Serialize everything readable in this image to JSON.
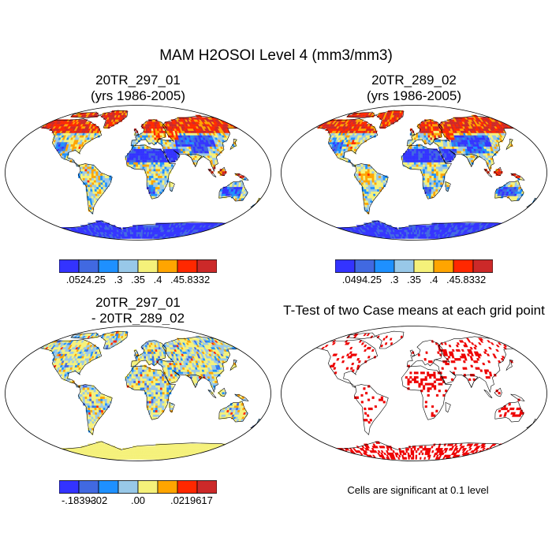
{
  "figure": {
    "title": "MAM H2OSOI Level 4 (mm3/mm3)"
  },
  "panels": [
    {
      "id": "p1",
      "title_line1": "20TR_297_01",
      "title_line2": "(yrs 1986-2005)",
      "type": "field"
    },
    {
      "id": "p2",
      "title_line1": "20TR_289_02",
      "title_line2": "(yrs 1986-2005)",
      "type": "field"
    },
    {
      "id": "p3",
      "title_line1": "20TR_297_01",
      "title_line2": "- 20TR_289_02",
      "type": "difference"
    },
    {
      "id": "p4",
      "title_line1": "T-Test of two Case means at each grid point",
      "title_line2": "",
      "type": "significance"
    }
  ],
  "colorbars": [
    {
      "id": "cb1",
      "colors": [
        "#3333ff",
        "#4169e1",
        "#1e90ff",
        "#98c8e8",
        "#f5f17a",
        "#ffa500",
        "#ff2800",
        "#cc2929"
      ],
      "labels": [
        ".0524",
        ".25",
        ".3",
        ".35",
        ".4",
        ".45",
        ".8332"
      ]
    },
    {
      "id": "cb2",
      "colors": [
        "#3333ff",
        "#4169e1",
        "#1e90ff",
        "#98c8e8",
        "#f5f17a",
        "#ffa500",
        "#ff2800",
        "#cc2929"
      ],
      "labels": [
        ".0494",
        ".25",
        ".3",
        ".35",
        ".4",
        ".45",
        ".8332"
      ]
    },
    {
      "id": "cb3",
      "colors": [
        "#3333ff",
        "#4169e1",
        "#1e90ff",
        "#98c8e8",
        "#f5f17a",
        "#ffa500",
        "#ff2800",
        "#cc2929"
      ],
      "labels": [
        "-.18393",
        "-.02",
        "",
        ".00",
        "",
        ".02",
        ".19617"
      ]
    }
  ],
  "significance_note": "Cells are significant at 0.1 level",
  "colors": {
    "significant": "#ee0000",
    "coast": "#000000",
    "frame": "#000000"
  }
}
